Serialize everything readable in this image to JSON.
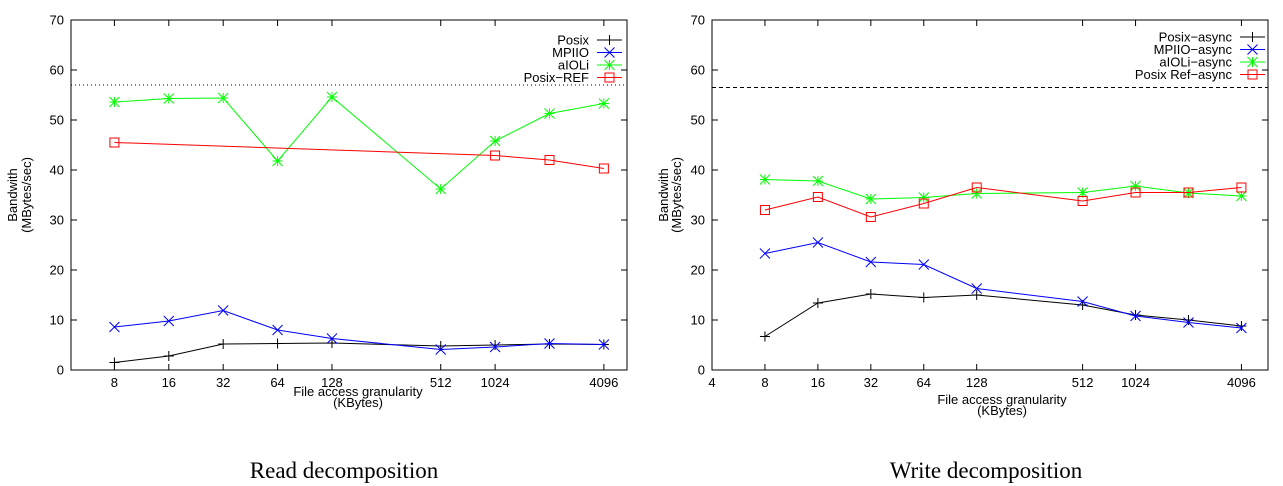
{
  "chart_data": [
    {
      "type": "line",
      "caption": "Read decomposition",
      "xlabel": "File access granularity",
      "xlabel_unit": "(KBytes)",
      "ylabel": "Bandwith",
      "ylabel_unit": "(MBytes/sec)",
      "x_scale": "log2",
      "xlim": [
        4.6,
        5500
      ],
      "ylim": [
        0,
        70
      ],
      "xticks": [
        8,
        16,
        32,
        64,
        128,
        512,
        1024,
        4096
      ],
      "yticks": [
        0,
        10,
        20,
        30,
        40,
        50,
        60,
        70
      ],
      "reference_line": {
        "y": 57,
        "style": "dotted"
      },
      "legend_position": "top-right",
      "series": [
        {
          "name": "Posix",
          "color": "#000000",
          "marker": "plus",
          "x": [
            8,
            16,
            32,
            64,
            128,
            512,
            1024,
            2048,
            4096
          ],
          "y": [
            1.5,
            2.8,
            5.2,
            5.3,
            5.4,
            4.8,
            5.0,
            5.2,
            5.1
          ]
        },
        {
          "name": "MPIIO",
          "color": "#0000ff",
          "marker": "cross",
          "x": [
            8,
            16,
            32,
            64,
            128,
            512,
            1024,
            2048,
            4096
          ],
          "y": [
            8.6,
            9.8,
            11.9,
            8.0,
            6.3,
            4.1,
            4.6,
            5.3,
            5.1
          ]
        },
        {
          "name": "aIOLi",
          "color": "#00ff00",
          "marker": "star",
          "x": [
            8,
            16,
            32,
            64,
            128,
            512,
            1024,
            2048,
            4096
          ],
          "y": [
            53.6,
            54.3,
            54.4,
            41.8,
            54.6,
            36.2,
            45.8,
            51.3,
            53.3
          ]
        },
        {
          "name": "Posix−REF",
          "color": "#ff0000",
          "marker": "square",
          "x": [
            8,
            1024,
            2048,
            4096
          ],
          "y": [
            45.5,
            42.9,
            42.0,
            40.3
          ]
        }
      ]
    },
    {
      "type": "line",
      "caption": "Write decomposition",
      "xlabel": "File access granularity",
      "xlabel_unit": "(KBytes)",
      "ylabel": "Bandwith",
      "ylabel_unit": "(MBytes/sec)",
      "x_scale": "log2",
      "xlim": [
        4,
        5800
      ],
      "ylim": [
        0,
        70
      ],
      "xticks": [
        4,
        8,
        16,
        32,
        64,
        128,
        512,
        1024,
        4096
      ],
      "yticks": [
        0,
        10,
        20,
        30,
        40,
        50,
        60,
        70
      ],
      "reference_line": {
        "y": 56.5,
        "style": "dashed"
      },
      "legend_position": "top-right",
      "series": [
        {
          "name": "Posix−async",
          "color": "#000000",
          "marker": "plus",
          "x": [
            8,
            16,
            32,
            64,
            128,
            512,
            1024,
            2048,
            4096
          ],
          "y": [
            6.7,
            13.4,
            15.2,
            14.5,
            15.0,
            13.0,
            11.0,
            10.0,
            8.8
          ]
        },
        {
          "name": "MPIIO−async",
          "color": "#0000ff",
          "marker": "cross",
          "x": [
            8,
            16,
            32,
            64,
            128,
            512,
            1024,
            2048,
            4096
          ],
          "y": [
            23.3,
            25.5,
            21.6,
            21.1,
            16.3,
            13.7,
            10.8,
            9.5,
            8.4
          ]
        },
        {
          "name": "aIOLi−async",
          "color": "#00ff00",
          "marker": "star",
          "x": [
            8,
            16,
            32,
            64,
            128,
            512,
            1024,
            2048,
            4096
          ],
          "y": [
            38.1,
            37.8,
            34.2,
            34.5,
            35.3,
            35.5,
            36.8,
            35.4,
            34.8
          ]
        },
        {
          "name": "Posix Ref−async",
          "color": "#ff0000",
          "marker": "square",
          "x": [
            8,
            16,
            32,
            64,
            128,
            512,
            1024,
            2048,
            4096
          ],
          "y": [
            32.0,
            34.6,
            30.6,
            33.3,
            36.5,
            33.8,
            35.5,
            35.5,
            36.5
          ]
        }
      ]
    }
  ]
}
